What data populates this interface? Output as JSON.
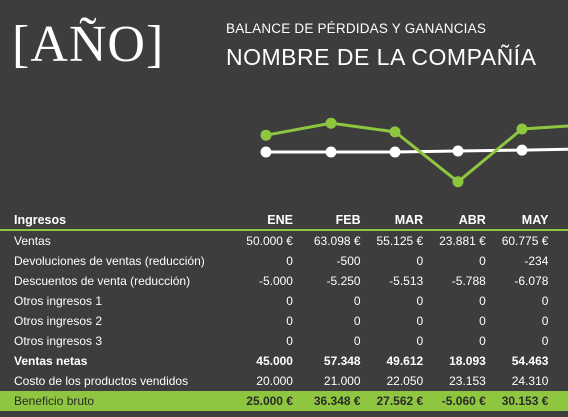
{
  "header": {
    "year": "[AÑO]",
    "subtitle": "BALANCE DE PÉRDIDAS Y GANANCIAS",
    "company": "NOMBRE DE LA COMPAÑÍA"
  },
  "colors": {
    "background": "#3d3d3d",
    "accent": "#8ec63f",
    "white": "#ffffff"
  },
  "sparkline": {
    "green_series": [
      0.35,
      0.6,
      0.42,
      -0.62,
      0.48,
      0.55
    ],
    "white_series": [
      0,
      0,
      0,
      0.02,
      0.04,
      0.06
    ]
  },
  "table": {
    "section_label": "Ingresos",
    "months": [
      "ENE",
      "FEB",
      "MAR",
      "ABR",
      "MAY"
    ],
    "rows": [
      {
        "label": "Ventas",
        "values": [
          "50.000 €",
          "63.098 €",
          "55.125 €",
          "23.881 €",
          "60.775 €"
        ]
      },
      {
        "label": "Devoluciones de ventas (reducción)",
        "values": [
          "0",
          "-500",
          "0",
          "0",
          "-234"
        ]
      },
      {
        "label": "Descuentos de venta (reducción)",
        "values": [
          "-5.000",
          "-5.250",
          "-5.513",
          "-5.788",
          "-6.078"
        ]
      },
      {
        "label": "Otros ingresos 1",
        "values": [
          "0",
          "0",
          "0",
          "0",
          "0"
        ]
      },
      {
        "label": "Otros ingresos 2",
        "values": [
          "0",
          "0",
          "0",
          "0",
          "0"
        ]
      },
      {
        "label": "Otros ingresos 3",
        "values": [
          "0",
          "0",
          "0",
          "0",
          "0"
        ]
      },
      {
        "label": "Ventas netas",
        "values": [
          "45.000",
          "57.348",
          "49.612",
          "18.093",
          "54.463"
        ]
      },
      {
        "label": "Costo de los productos vendidos",
        "values": [
          "20.000",
          "21.000",
          "22.050",
          "23.153",
          "24.310"
        ]
      },
      {
        "label": "Beneficio bruto",
        "values": [
          "25.000 €",
          "36.348 €",
          "27.562 €",
          "-5.060 €",
          "30.153 €"
        ]
      }
    ]
  }
}
